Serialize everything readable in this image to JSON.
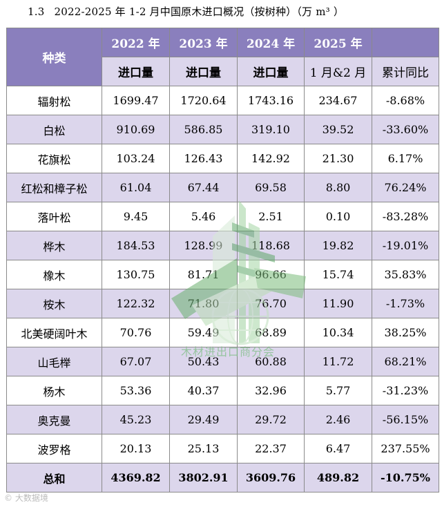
{
  "caption": {
    "number": "1.3",
    "title": "2022-2025 年 1-2 月中国原木进口概况（按树种）（万 m³ ）"
  },
  "table": {
    "corner_header": "种类",
    "year_headers": [
      "2022 年",
      "2023 年",
      "2024 年",
      "2025 年",
      ""
    ],
    "sub_headers": [
      "进口量",
      "进口量",
      "进口量",
      "1 月&2 月",
      "累计同比"
    ],
    "rows": [
      {
        "name": "辐射松",
        "values": [
          "1699.47",
          "1720.64",
          "1743.16",
          "234.67",
          "-8.68%"
        ]
      },
      {
        "name": "白松",
        "values": [
          "910.69",
          "586.85",
          "319.10",
          "39.52",
          "-33.60%"
        ]
      },
      {
        "name": "花旗松",
        "values": [
          "103.24",
          "126.43",
          "142.92",
          "21.30",
          "6.17%"
        ]
      },
      {
        "name": "红松和樟子松",
        "values": [
          "61.04",
          "67.44",
          "69.58",
          "8.80",
          "76.24%"
        ]
      },
      {
        "name": "落叶松",
        "values": [
          "9.45",
          "5.46",
          "2.51",
          "0.10",
          "-83.28%"
        ]
      },
      {
        "name": "桦木",
        "values": [
          "184.53",
          "128.99",
          "118.68",
          "19.82",
          "-19.01%"
        ]
      },
      {
        "name": "橡木",
        "values": [
          "130.75",
          "81.71",
          "96.66",
          "15.74",
          "35.83%"
        ]
      },
      {
        "name": "桉木",
        "values": [
          "122.32",
          "71.80",
          "76.70",
          "11.90",
          "-1.73%"
        ]
      },
      {
        "name": "北美硬阔叶木",
        "values": [
          "70.76",
          "59.49",
          "68.89",
          "10.34",
          "38.25%"
        ]
      },
      {
        "name": "山毛榉",
        "values": [
          "67.07",
          "50.43",
          "60.88",
          "11.72",
          "68.21%"
        ]
      },
      {
        "name": "杨木",
        "values": [
          "53.36",
          "40.37",
          "32.96",
          "5.77",
          "-31.23%"
        ]
      },
      {
        "name": "奥克曼",
        "values": [
          "45.23",
          "29.49",
          "29.72",
          "2.46",
          "-56.15%"
        ]
      },
      {
        "name": "波罗格",
        "values": [
          "20.13",
          "25.13",
          "22.37",
          "6.47",
          "237.55%"
        ]
      }
    ],
    "total": {
      "name": "总和",
      "values": [
        "4369.82",
        "3802.91",
        "3609.76",
        "489.82",
        "-10.75%"
      ]
    }
  },
  "watermark": {
    "text": "木材进出口商分会"
  },
  "corner_watermark": {
    "text": "大数据境"
  },
  "colors": {
    "header_purple": "#8a7fbd",
    "row_lavender": "#dcd6ec",
    "watermark_green": "#7fbf86"
  }
}
